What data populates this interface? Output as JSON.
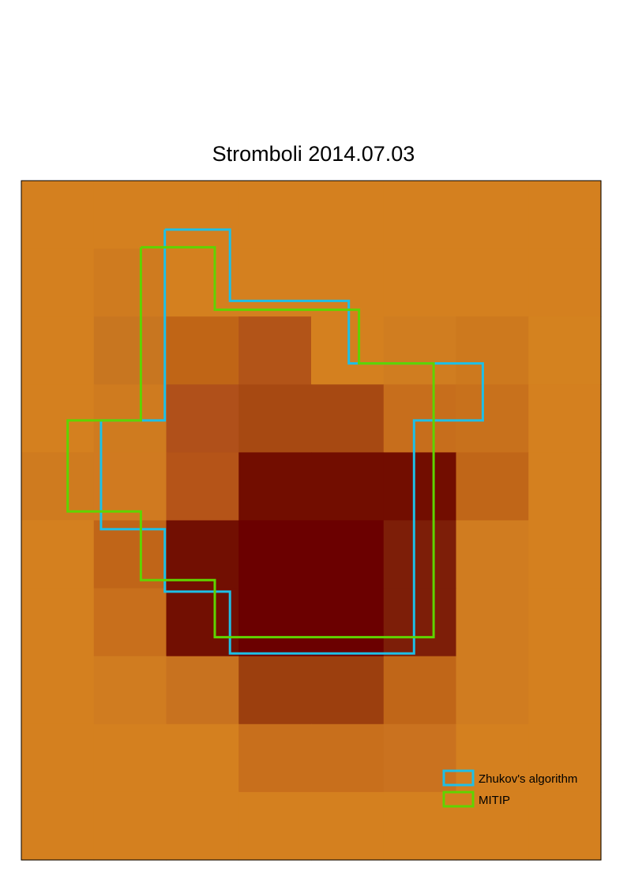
{
  "chart_data": {
    "type": "heatmap",
    "title": "Stromboli 2014.07.03",
    "xlabel": "",
    "ylabel": "",
    "grid": false,
    "legend_position": "bottom-right",
    "cell_colors": [
      [
        "#d4801f",
        "#d4801f",
        "#d4801f",
        "#d4801f",
        "#d4801f",
        "#d4801f",
        "#d4801f",
        "#d4801f"
      ],
      [
        "#d4801f",
        "#cf7b1f",
        "#d4801f",
        "#d4801f",
        "#d4801f",
        "#d4801f",
        "#d4801f",
        "#d4801f"
      ],
      [
        "#d4801f",
        "#c87620",
        "#c06516",
        "#b25418",
        "#d4801f",
        "#d07d20",
        "#cd791e",
        "#d4821f"
      ],
      [
        "#d4801f",
        "#cf7b1f",
        "#b0501a",
        "#a74912",
        "#a74912",
        "#c76e1c",
        "#c8711c",
        "#d4801f"
      ],
      [
        "#cf7b1f",
        "#d07a20",
        "#b55418",
        "#720d00",
        "#720d00",
        "#720d00",
        "#c06618",
        "#d4801f"
      ],
      [
        "#d4801f",
        "#c06518",
        "#720f02",
        "#6b0000",
        "#6b0000",
        "#7d1e08",
        "#d07c20",
        "#d4801f"
      ],
      [
        "#d4801f",
        "#c86f1c",
        "#720f02",
        "#6b0000",
        "#6b0000",
        "#7d1e08",
        "#d07c20",
        "#d4801f"
      ],
      [
        "#d4801f",
        "#d07c20",
        "#c8721f",
        "#9c3f0e",
        "#9c3f0e",
        "#c06618",
        "#d07c20",
        "#d4801f"
      ],
      [
        "#d4801f",
        "#d4801f",
        "#d4801f",
        "#c86f1c",
        "#c86f1c",
        "#ca721f",
        "#d4801f",
        "#d4801f"
      ],
      [
        "#d4801f",
        "#d4801f",
        "#d4801f",
        "#d4801f",
        "#d4801f",
        "#d4801f",
        "#d4801f",
        "#d4801f"
      ]
    ],
    "series": [
      {
        "name": "Zhukov's algorithm",
        "color": "#1ebfe6",
        "outline": [
          [
            1.98,
            0.72
          ],
          [
            2.88,
            0.72
          ],
          [
            2.88,
            1.77
          ],
          [
            4.52,
            1.77
          ],
          [
            4.52,
            2.69
          ],
          [
            6.37,
            2.69
          ],
          [
            6.37,
            3.53
          ],
          [
            5.42,
            3.53
          ],
          [
            5.42,
            6.96
          ],
          [
            2.88,
            6.96
          ],
          [
            2.88,
            6.05
          ],
          [
            1.98,
            6.05
          ],
          [
            1.98,
            5.13
          ],
          [
            1.1,
            5.13
          ],
          [
            1.1,
            3.53
          ],
          [
            1.98,
            3.53
          ],
          [
            1.98,
            0.72
          ]
        ]
      },
      {
        "name": "MITIP",
        "color": "#5fd400",
        "outline": [
          [
            1.65,
            0.98
          ],
          [
            2.67,
            0.98
          ],
          [
            2.67,
            1.9
          ],
          [
            4.66,
            1.9
          ],
          [
            4.66,
            2.69
          ],
          [
            5.69,
            2.69
          ],
          [
            5.69,
            6.72
          ],
          [
            2.67,
            6.72
          ],
          [
            2.67,
            5.88
          ],
          [
            1.65,
            5.88
          ],
          [
            1.65,
            4.87
          ],
          [
            0.64,
            4.87
          ],
          [
            0.64,
            3.53
          ],
          [
            1.65,
            3.53
          ],
          [
            1.65,
            0.98
          ]
        ]
      }
    ]
  }
}
